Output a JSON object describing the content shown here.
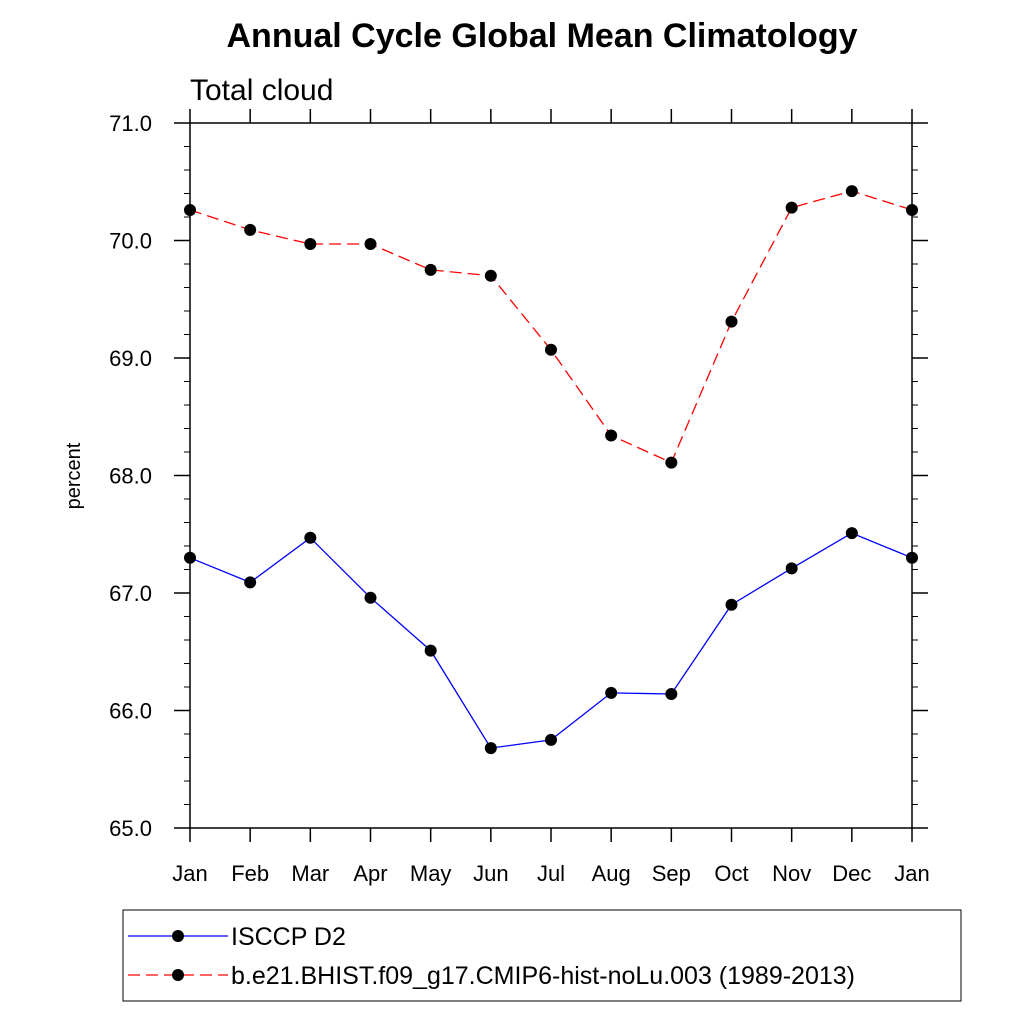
{
  "chart_data": {
    "type": "line",
    "title": "Annual Cycle Global Mean Climatology",
    "subtitle": "Total cloud",
    "xlabel": "",
    "ylabel": "percent",
    "ylim": [
      65.0,
      71.0
    ],
    "yticks": [
      "65.0",
      "66.0",
      "67.0",
      "68.0",
      "69.0",
      "70.0",
      "71.0"
    ],
    "categories": [
      "Jan",
      "Feb",
      "Mar",
      "Apr",
      "May",
      "Jun",
      "Jul",
      "Aug",
      "Sep",
      "Oct",
      "Nov",
      "Dec",
      "Jan"
    ],
    "series": [
      {
        "name": "ISCCP D2",
        "color": "#0000ff",
        "dash": "solid",
        "values": [
          67.3,
          67.09,
          67.47,
          66.96,
          66.51,
          65.68,
          65.75,
          66.15,
          66.14,
          66.9,
          67.21,
          67.51,
          67.3
        ]
      },
      {
        "name": "b.e21.BHIST.f09_g17.CMIP6-hist-noLu.003 (1989-2013)",
        "color": "#ff0000",
        "dash": "dashed",
        "values": [
          70.26,
          70.09,
          69.97,
          69.97,
          69.75,
          69.7,
          69.07,
          68.34,
          68.11,
          69.31,
          70.28,
          70.42,
          70.26
        ]
      }
    ],
    "legend_position": "bottom"
  }
}
